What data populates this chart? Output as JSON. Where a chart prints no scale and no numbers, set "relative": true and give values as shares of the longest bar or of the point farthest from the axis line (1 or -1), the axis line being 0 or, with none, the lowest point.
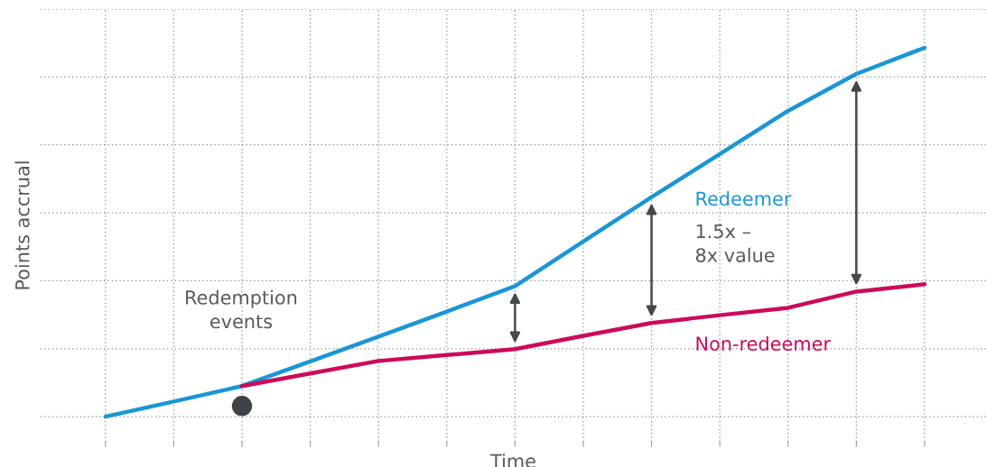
{
  "chart_data": {
    "type": "line",
    "relative": true,
    "xlabel": "Time",
    "ylabel": "Points accrual",
    "categories": [
      null,
      null,
      null,
      null,
      null,
      null,
      null,
      null,
      null,
      null,
      null,
      null,
      null
    ],
    "grid": true,
    "line_style": "solid",
    "marker": "none",
    "series": [
      {
        "name": "Redeemer",
        "color": "#1a96d4",
        "values": [
          0,
          0.041,
          0.083,
          0.15,
          0.217,
          0.285,
          0.354,
          0.475,
          0.595,
          0.712,
          0.829,
          0.929,
          1
        ]
      },
      {
        "name": "Non-redeemer",
        "color": "#cc0a5a",
        "values": [
          null,
          null,
          0.083,
          0.117,
          0.151,
          0.167,
          0.183,
          0.219,
          0.254,
          0.275,
          0.295,
          0.339,
          0.359
        ]
      }
    ],
    "annotations": [
      "Redemption\nevents",
      "1.5x –\n8x value"
    ]
  }
}
